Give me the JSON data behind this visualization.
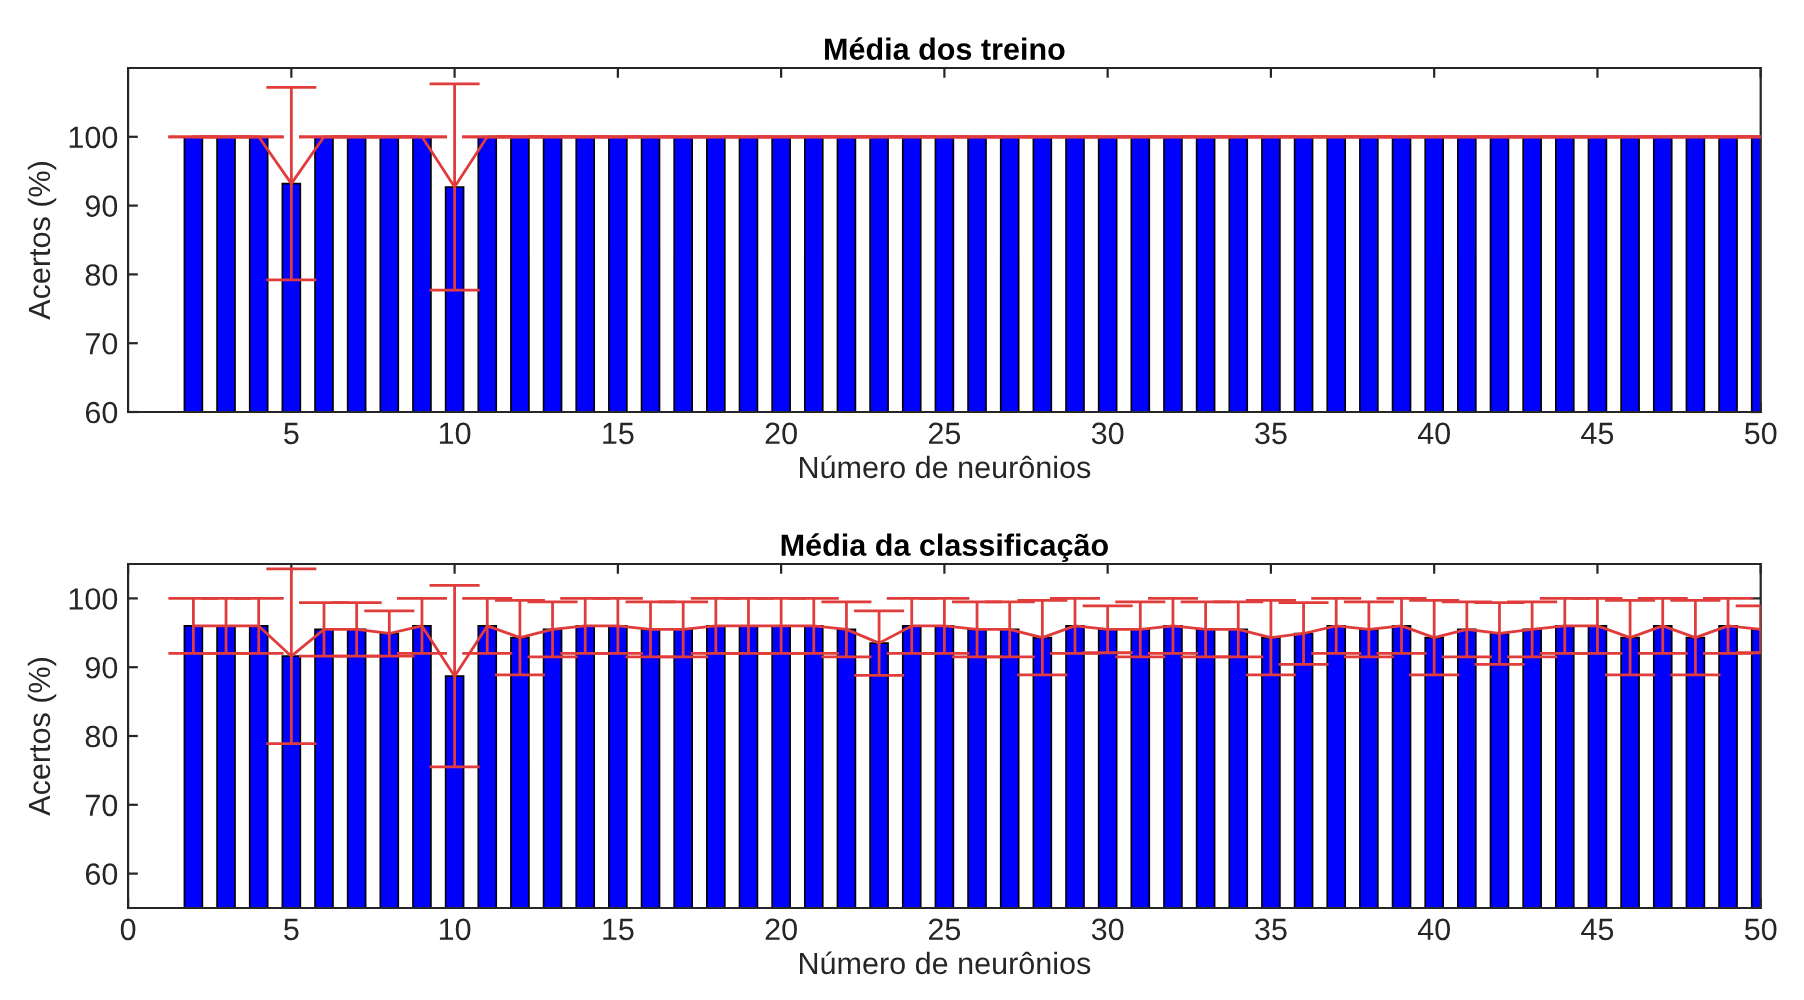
{
  "chart_data": [
    {
      "type": "bar",
      "title": "Média dos treino",
      "xlabel": "Número de neurônios",
      "ylabel": "Acertos (%)",
      "xlim": [
        0,
        50
      ],
      "xticks": [
        5,
        10,
        15,
        20,
        25,
        30,
        35,
        40,
        45,
        50
      ],
      "ylim": [
        60,
        110
      ],
      "yticks": [
        60,
        70,
        80,
        90,
        100
      ],
      "grid": false,
      "series": [
        {
          "color": "#0000ff",
          "x": [
            2,
            3,
            4,
            5,
            6,
            7,
            8,
            9,
            10,
            11,
            12,
            13,
            14,
            15,
            16,
            17,
            18,
            19,
            20,
            21,
            22,
            23,
            24,
            25,
            26,
            27,
            28,
            29,
            30,
            31,
            32,
            33,
            34,
            35,
            36,
            37,
            38,
            39,
            40,
            41,
            42,
            43,
            44,
            45,
            46,
            47,
            48,
            49,
            50
          ],
          "values": [
            100,
            100,
            100,
            93.2,
            100,
            100,
            100,
            100,
            92.7,
            100,
            100,
            100,
            100,
            100,
            100,
            100,
            100,
            100,
            100,
            100,
            100,
            100,
            100,
            100,
            100,
            100,
            100,
            100,
            100,
            100,
            100,
            100,
            100,
            100,
            100,
            100,
            100,
            100,
            100,
            100,
            100,
            100,
            100,
            100,
            100,
            100,
            100,
            100,
            100
          ]
        },
        {
          "type": "line",
          "color": "#e03c3c",
          "x": [
            2,
            3,
            4,
            5,
            6,
            7,
            8,
            9,
            10,
            11,
            12,
            13,
            14,
            15,
            16,
            17,
            18,
            19,
            20,
            21,
            22,
            23,
            24,
            25,
            26,
            27,
            28,
            29,
            30,
            31,
            32,
            33,
            34,
            35,
            36,
            37,
            38,
            39,
            40,
            41,
            42,
            43,
            44,
            45,
            46,
            47,
            48,
            49,
            50
          ],
          "values": [
            100,
            100,
            100,
            93.2,
            100,
            100,
            100,
            100,
            92.7,
            100,
            100,
            100,
            100,
            100,
            100,
            100,
            100,
            100,
            100,
            100,
            100,
            100,
            100,
            100,
            100,
            100,
            100,
            100,
            100,
            100,
            100,
            100,
            100,
            100,
            100,
            100,
            100,
            100,
            100,
            100,
            100,
            100,
            100,
            100,
            100,
            100,
            100,
            100,
            100
          ],
          "errors": [
            0,
            0,
            0,
            14,
            0,
            0,
            0,
            0,
            15,
            0,
            0,
            0,
            0,
            0,
            0,
            0,
            0,
            0,
            0,
            0,
            0,
            0,
            0,
            0,
            0,
            0,
            0,
            0,
            0,
            0,
            0,
            0,
            0,
            0,
            0,
            0,
            0,
            0,
            0,
            0,
            0,
            0,
            0,
            0,
            0,
            0,
            0,
            0,
            0
          ]
        }
      ]
    },
    {
      "type": "bar",
      "title": "Média da classificação",
      "xlabel": "Número de neurônios",
      "ylabel": "Acertos (%)",
      "xlim": [
        0,
        50
      ],
      "xticks": [
        0,
        5,
        10,
        15,
        20,
        25,
        30,
        35,
        40,
        45,
        50
      ],
      "ylim": [
        55,
        105
      ],
      "yticks": [
        60,
        70,
        80,
        90,
        100
      ],
      "grid": false,
      "series": [
        {
          "color": "#0000ff",
          "x": [
            2,
            3,
            4,
            5,
            6,
            7,
            8,
            9,
            10,
            11,
            12,
            13,
            14,
            15,
            16,
            17,
            18,
            19,
            20,
            21,
            22,
            23,
            24,
            25,
            26,
            27,
            28,
            29,
            30,
            31,
            32,
            33,
            34,
            35,
            36,
            37,
            38,
            39,
            40,
            41,
            42,
            43,
            44,
            45,
            46,
            47,
            48,
            49,
            50
          ],
          "values": [
            96,
            96,
            96,
            91.6,
            95.5,
            95.5,
            94.9,
            96,
            88.7,
            96,
            94.3,
            95.5,
            96,
            96,
            95.5,
            95.5,
            96,
            96,
            96,
            96,
            95.5,
            93.5,
            96,
            96,
            95.5,
            95.5,
            94.3,
            96,
            95.5,
            95.5,
            96,
            95.5,
            95.5,
            94.3,
            94.9,
            96,
            95.5,
            96,
            94.3,
            95.5,
            94.9,
            95.5,
            96,
            96,
            94.3,
            96,
            94.3,
            96,
            95.5
          ]
        },
        {
          "type": "line",
          "color": "#e03c3c",
          "x": [
            2,
            3,
            4,
            5,
            6,
            7,
            8,
            9,
            10,
            11,
            12,
            13,
            14,
            15,
            16,
            17,
            18,
            19,
            20,
            21,
            22,
            23,
            24,
            25,
            26,
            27,
            28,
            29,
            30,
            31,
            32,
            33,
            34,
            35,
            36,
            37,
            38,
            39,
            40,
            41,
            42,
            43,
            44,
            45,
            46,
            47,
            48,
            49,
            50
          ],
          "values": [
            96,
            96,
            96,
            91.6,
            95.5,
            95.5,
            94.9,
            96,
            88.7,
            96,
            94.3,
            95.5,
            96,
            96,
            95.5,
            95.5,
            96,
            96,
            96,
            96,
            95.5,
            93.5,
            96,
            96,
            95.5,
            95.5,
            94.3,
            96,
            95.5,
            95.5,
            96,
            95.5,
            95.5,
            94.3,
            94.9,
            96,
            95.5,
            96,
            94.3,
            95.5,
            94.9,
            95.5,
            96,
            96,
            94.3,
            96,
            94.3,
            96,
            95.5
          ],
          "errors": [
            4,
            4,
            4,
            12.7,
            3.9,
            3.9,
            3.3,
            4,
            13.2,
            4,
            5.4,
            4,
            4,
            4,
            4,
            4,
            4,
            4,
            4,
            4,
            4,
            4.7,
            4,
            4,
            4,
            4,
            5.4,
            4,
            3.4,
            4,
            4,
            4,
            4,
            5.4,
            4.5,
            4,
            4,
            4,
            5.4,
            4,
            4.5,
            4,
            4,
            4,
            5.4,
            4,
            5.4,
            4,
            3.4
          ]
        }
      ]
    }
  ]
}
